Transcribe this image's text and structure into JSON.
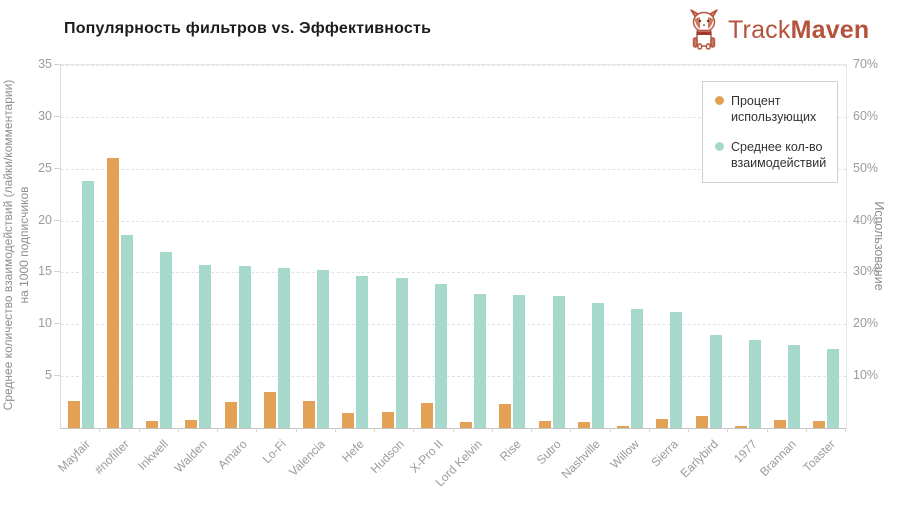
{
  "title": "Популярность фильтров vs. Эффективность",
  "logo": {
    "track": "Track",
    "maven": "Maven",
    "color": "#b5523c"
  },
  "legend": {
    "items": [
      {
        "label": "Процент использующих",
        "color": "#e3a155"
      },
      {
        "label": "Среднее кол-во взаимодействий",
        "color": "#a7d8cc"
      }
    ]
  },
  "axes": {
    "left_title_line1": "Среднее количество взаимодействий (лайки/комментарии)",
    "left_title_line2": "на 1000 подписчиков",
    "right_title": "Использование"
  },
  "chart_data": {
    "type": "bar",
    "title": "Популярность фильтров vs. Эффективность",
    "categories": [
      "Mayfair",
      "#nofilter",
      "Inkwell",
      "Walden",
      "Amaro",
      "Lo-Fi",
      "Valencia",
      "Hefe",
      "Hudson",
      "X-Pro II",
      "Lord Kelvin",
      "Rise",
      "Sutro",
      "Nashville",
      "Willow",
      "Sierra",
      "Earlybird",
      "1977",
      "Brannan",
      "Toaster"
    ],
    "series": [
      {
        "name": "Процент использующих",
        "axis": "right",
        "unit": "%",
        "color": "#e3a155",
        "values": [
          5.2,
          52,
          1.4,
          1.6,
          5.0,
          7.0,
          5.2,
          2.8,
          3.1,
          4.9,
          1.2,
          4.6,
          1.4,
          1.2,
          0.3,
          1.7,
          2.3,
          0.4,
          1.5,
          1.4
        ]
      },
      {
        "name": "Среднее кол-во взаимодействий",
        "axis": "left",
        "unit": "interactions per 1000 followers",
        "color": "#a7d8cc",
        "values": [
          23.8,
          18.6,
          17.0,
          15.7,
          15.6,
          15.4,
          15.2,
          14.7,
          14.5,
          13.9,
          12.9,
          12.8,
          12.7,
          12.1,
          11.5,
          11.2,
          9.0,
          8.5,
          8.0,
          7.6
        ]
      }
    ],
    "left_axis": {
      "label": "Среднее количество взаимодействий (лайки/комментарии) на 1000 подписчиков",
      "range": [
        0,
        35
      ],
      "ticks": [
        5,
        10,
        15,
        20,
        25,
        30,
        35
      ]
    },
    "right_axis": {
      "label": "Использование",
      "range": [
        0,
        70
      ],
      "ticks": [
        "10%",
        "20%",
        "30%",
        "40%",
        "50%",
        "60%",
        "70%"
      ]
    },
    "legend_position": "top-right",
    "grid": "horizontal-dashed"
  }
}
